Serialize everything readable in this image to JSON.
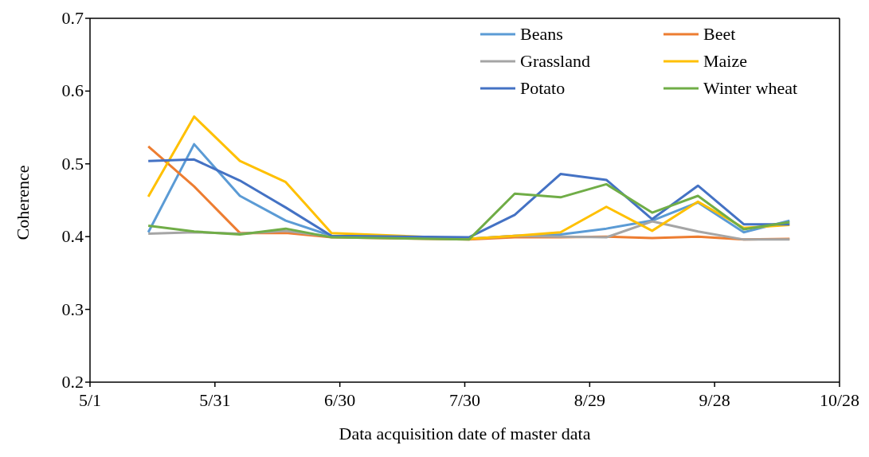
{
  "chart_data": {
    "type": "line",
    "xlabel": "Data acquisition date of master data",
    "ylabel": "Coherence",
    "x": [
      "--05-15",
      "--05-26",
      "--06-06",
      "--06-17",
      "--06-28",
      "--07-31",
      "--08-11",
      "--08-22",
      "--09-02",
      "--09-13",
      "--09-24",
      "--10-05",
      "--10-16"
    ],
    "xlim": [
      "--05-01",
      "--10-28"
    ],
    "xticks": [
      {
        "value": "--05-01",
        "label": "5/1"
      },
      {
        "value": "--05-31",
        "label": "5/31"
      },
      {
        "value": "--06-30",
        "label": "6/30"
      },
      {
        "value": "--07-30",
        "label": "7/30"
      },
      {
        "value": "--08-29",
        "label": "8/29"
      },
      {
        "value": "--09-28",
        "label": "9/28"
      },
      {
        "value": "--10-28",
        "label": "10/28"
      }
    ],
    "ylim": [
      0.2,
      0.7
    ],
    "yticks": [
      0.2,
      0.3,
      0.4,
      0.5,
      0.6,
      0.7
    ],
    "grid": false,
    "legend": "top right",
    "marker": "none",
    "line_style": "solid",
    "series": [
      {
        "name": "Beans",
        "color": "#5b9bd5",
        "values": [
          0.406,
          0.527,
          0.456,
          0.422,
          0.401,
          0.397,
          0.401,
          0.403,
          0.411,
          0.422,
          0.447,
          0.406,
          0.422
        ]
      },
      {
        "name": "Beet",
        "color": "#ed7d31",
        "values": [
          0.524,
          0.469,
          0.405,
          0.405,
          0.399,
          0.396,
          0.399,
          0.399,
          0.4,
          0.398,
          0.4,
          0.396,
          0.397
        ]
      },
      {
        "name": "Grassland",
        "color": "#a5a5a5",
        "values": [
          0.404,
          0.406,
          0.404,
          0.408,
          0.4,
          0.397,
          0.401,
          0.4,
          0.399,
          0.421,
          0.407,
          0.396,
          0.396
        ]
      },
      {
        "name": "Maize",
        "color": "#ffc000",
        "values": [
          0.455,
          0.565,
          0.504,
          0.475,
          0.405,
          0.397,
          0.401,
          0.406,
          0.441,
          0.408,
          0.448,
          0.412,
          0.416
        ]
      },
      {
        "name": "Potato",
        "color": "#4472c4",
        "values": [
          0.504,
          0.506,
          0.477,
          0.44,
          0.401,
          0.399,
          0.43,
          0.486,
          0.478,
          0.424,
          0.47,
          0.417,
          0.417
        ]
      },
      {
        "name": "Winter wheat",
        "color": "#70ad47",
        "values": [
          0.415,
          0.407,
          0.403,
          0.411,
          0.399,
          0.396,
          0.459,
          0.454,
          0.472,
          0.433,
          0.456,
          0.41,
          0.42
        ]
      }
    ]
  }
}
